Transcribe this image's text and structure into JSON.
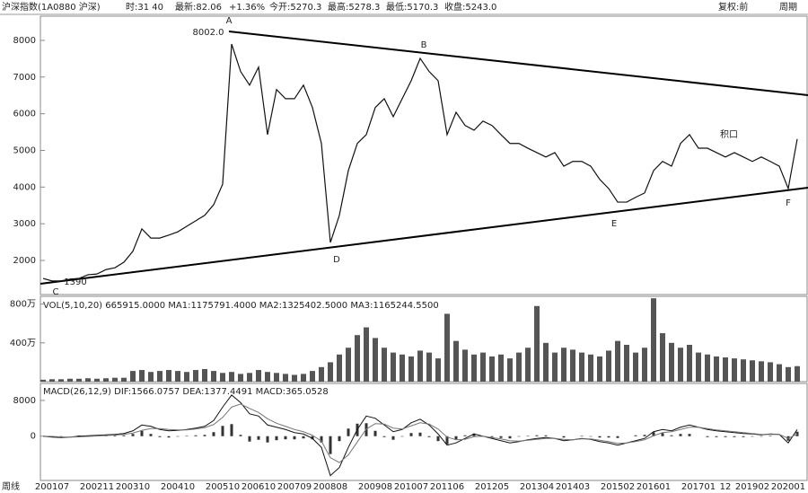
{
  "header": {
    "name": "沪深指数(1A0880 沪深)",
    "time": "时:31 40",
    "last": "最新:82.06",
    "change": "+1.36%",
    "open": "今开:5270.3",
    "high": "最高:5278.3",
    "low": "最低:5170.3",
    "close": "收盘:5243.0",
    "restore": "复权:前",
    "period": "周期",
    "freq": "周线"
  },
  "chart_data": [
    {
      "type": "line",
      "color": "#111",
      "categories": [
        null,
        "200107",
        null,
        null,
        null,
        null,
        "200211",
        null,
        null,
        null,
        "200310",
        null,
        null,
        null,
        null,
        "200410",
        null,
        null,
        null,
        null,
        "200510",
        null,
        null,
        null,
        "200610",
        null,
        null,
        null,
        "200709",
        null,
        null,
        null,
        "200808",
        null,
        null,
        null,
        null,
        "200908",
        null,
        null,
        null,
        "201007",
        null,
        null,
        null,
        "201106",
        null,
        null,
        null,
        null,
        "201205",
        null,
        null,
        null,
        null,
        "201304",
        null,
        null,
        null,
        "201403",
        null,
        null,
        null,
        null,
        "201502",
        null,
        null,
        null,
        "201601",
        null,
        null,
        null,
        null,
        "201701",
        null,
        null,
        "12",
        null,
        null,
        "201902",
        null,
        null,
        null,
        "202001",
        null
      ],
      "values": [
        1510,
        1440,
        1440,
        1490,
        1510,
        1610,
        1630,
        1750,
        1800,
        1950,
        2250,
        2860,
        2610,
        2610,
        2690,
        2780,
        2930,
        3080,
        3230,
        3520,
        4080,
        7900,
        7150,
        6780,
        7270,
        5430,
        6660,
        6410,
        6410,
        6780,
        6170,
        5190,
        2490,
        3230,
        4450,
        5190,
        5430,
        6170,
        6410,
        5920,
        6410,
        6900,
        7510,
        7150,
        6900,
        5430,
        6040,
        5680,
        5550,
        5800,
        5680,
        5430,
        5190,
        5190,
        5060,
        4940,
        4820,
        4940,
        4570,
        4700,
        4700,
        4570,
        4210,
        3960,
        3590,
        3590,
        3720,
        3840,
        4450,
        4700,
        4570,
        5190,
        5430,
        5060,
        5060,
        4940,
        4820,
        4940,
        4820,
        4700,
        4820,
        4700,
        4570,
        3960,
        5310
      ],
      "ylim": [
        1070,
        8660
      ],
      "yticks": [
        8000,
        7000,
        6000,
        5000,
        4000,
        3000,
        2000
      ],
      "annotations": [
        "A",
        "8002.0",
        "B",
        "C",
        "1390",
        "D",
        "E",
        "F",
        "积口"
      ]
    },
    {
      "type": "bar",
      "title": "VOL(5,10,20) 665915.0000 MA1:1175791.4000 MA2:1325402.5000 MA3:1165244.5500",
      "color": "#555",
      "values": [
        20,
        25,
        25,
        30,
        30,
        35,
        30,
        35,
        40,
        40,
        110,
        120,
        100,
        110,
        120,
        110,
        100,
        120,
        130,
        110,
        90,
        100,
        80,
        90,
        120,
        100,
        90,
        80,
        70,
        80,
        110,
        150,
        200,
        280,
        350,
        480,
        560,
        450,
        350,
        300,
        280,
        260,
        320,
        300,
        240,
        700,
        420,
        330,
        280,
        300,
        260,
        280,
        240,
        300,
        350,
        780,
        400,
        300,
        350,
        330,
        300,
        280,
        260,
        320,
        420,
        380,
        300,
        350,
        860,
        500,
        400,
        350,
        380,
        300,
        280,
        260,
        250,
        240,
        230,
        220,
        210,
        200,
        180,
        150,
        160
      ],
      "ylim": [
        0,
        880
      ],
      "yticks": [
        {
          "value": 800,
          "label": "800万"
        },
        {
          "value": 400,
          "label": "400万"
        }
      ]
    },
    {
      "type": "macd",
      "title": "MACD(26,12,9) DIF:1566.0757 DEA:1377.4491 MACD:365.0528",
      "series": [
        {
          "color": "#111",
          "values": [
            0,
            -200,
            -300,
            -200,
            0,
            100,
            200,
            300,
            400,
            600,
            1200,
            2500,
            2200,
            1500,
            1200,
            1300,
            1500,
            1800,
            2200,
            3500,
            6500,
            9200,
            7500,
            5000,
            4500,
            2500,
            2000,
            1500,
            800,
            500,
            -500,
            -2500,
            -8800,
            -7000,
            -2500,
            1500,
            4500,
            4000,
            2500,
            1000,
            1500,
            3000,
            3800,
            2500,
            500,
            -2000,
            -1500,
            -500,
            500,
            0,
            -500,
            -1000,
            -1500,
            -1200,
            -800,
            -500,
            -300,
            -500,
            -1000,
            -800,
            -500,
            -700,
            -1200,
            -1500,
            -2000,
            -1500,
            -1000,
            -500,
            1000,
            1500,
            1200,
            2000,
            2500,
            2000,
            1500,
            1200,
            1000,
            800,
            600,
            500,
            300,
            500,
            400,
            -1500,
            1500
          ]
        },
        {
          "color": "#777",
          "values": [
            0,
            -50,
            -150,
            -200,
            -150,
            -50,
            50,
            150,
            250,
            400,
            700,
            1300,
            1700,
            1700,
            1500,
            1400,
            1400,
            1600,
            1900,
            2600,
            4200,
            6500,
            7200,
            6200,
            5300,
            3900,
            2900,
            2200,
            1500,
            1000,
            200,
            -1100,
            -4800,
            -5900,
            -4200,
            -1300,
            1600,
            2800,
            2700,
            1800,
            1600,
            2300,
            3000,
            2700,
            1600,
            -200,
            -800,
            -700,
            -100,
            0,
            -300,
            -600,
            -1000,
            -1100,
            -900,
            -700,
            -500,
            -500,
            -700,
            -800,
            -600,
            -600,
            -900,
            -1200,
            -1600,
            -1500,
            -1200,
            -800,
            100,
            800,
            1000,
            1500,
            2000,
            2000,
            1700,
            1400,
            1200,
            1000,
            800,
            600,
            400,
            400,
            400,
            -500,
            500
          ]
        }
      ],
      "bars": {
        "color": "#333",
        "values": [
          0,
          -150,
          -150,
          0,
          150,
          150,
          150,
          150,
          150,
          200,
          500,
          1200,
          500,
          -200,
          -300,
          -100,
          100,
          200,
          300,
          900,
          2300,
          2700,
          300,
          -1200,
          -800,
          -1400,
          -900,
          -700,
          -700,
          -500,
          -700,
          -1400,
          -4000,
          -1100,
          1700,
          2800,
          2900,
          1200,
          -200,
          -800,
          -100,
          700,
          800,
          -200,
          -1100,
          -1800,
          -700,
          200,
          600,
          0,
          -200,
          -400,
          -500,
          -100,
          100,
          200,
          200,
          0,
          -300,
          0,
          100,
          -100,
          -300,
          -300,
          -400,
          0,
          200,
          300,
          900,
          700,
          200,
          500,
          500,
          0,
          -200,
          -200,
          -200,
          -200,
          -200,
          -100,
          -100,
          100,
          0,
          -1000,
          1000
        ]
      },
      "ylim": [
        -9890,
        11790
      ],
      "yticks": [
        8000,
        0
      ]
    }
  ]
}
